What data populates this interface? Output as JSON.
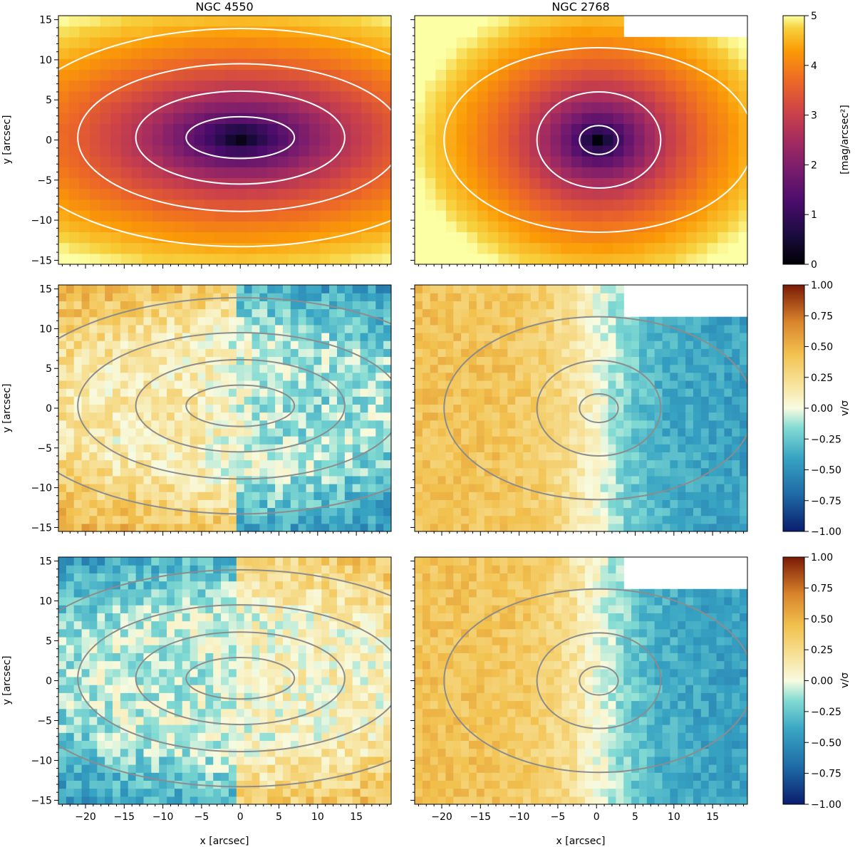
{
  "chart_data": {
    "type": "heatmap",
    "column_titles": [
      "NGC 4550",
      "NGC 2768"
    ],
    "x_axis": {
      "label": "x [arcsec]",
      "range": [
        -23.5,
        19.5
      ],
      "major_ticks": [
        -20,
        -15,
        -10,
        -5,
        0,
        5,
        10,
        15
      ],
      "tick_labels": [
        "−20",
        "−15",
        "−10",
        "−5",
        "0",
        "5",
        "10",
        "15"
      ]
    },
    "y_axis": {
      "label": "y [arcsec]",
      "range": [
        -15.5,
        15.5
      ],
      "major_ticks": [
        -15,
        -10,
        -5,
        0,
        5,
        10,
        15
      ],
      "tick_labels": [
        "−15",
        "−10",
        "−5",
        "0",
        "5",
        "10",
        "15"
      ]
    },
    "rows": [
      {
        "quantity": "surface brightness",
        "colormap": "inferno_r",
        "colorbar": {
          "label": "[mag/arcsec²]",
          "range": [
            0,
            5
          ],
          "ticks": [
            0,
            1,
            2,
            3,
            4,
            5
          ],
          "tick_labels": [
            "0",
            "1",
            "2",
            "3",
            "4",
            "5"
          ]
        },
        "contour_color": "#ffffff"
      },
      {
        "quantity": "v/sigma",
        "colormap": "YlOrBr / diverging",
        "colorbar": {
          "label": "v/σ",
          "range": [
            -1,
            1
          ],
          "ticks": [
            1,
            0.75,
            0.5,
            0.25,
            0,
            -0.25,
            -0.5,
            -0.75,
            -1
          ],
          "tick_labels": [
            "1.00",
            "0.75",
            "0.50",
            "0.25",
            "0.00",
            "−0.25",
            "−0.50",
            "−0.75",
            "−1.00"
          ]
        },
        "contour_color": "#8c8c8c"
      },
      {
        "quantity": "v/sigma",
        "colormap": "YlOrBr / diverging",
        "colorbar": {
          "label": "v/σ",
          "range": [
            -1,
            1
          ],
          "ticks": [
            1,
            0.75,
            0.5,
            0.25,
            0,
            -0.25,
            -0.5,
            -0.75,
            -1
          ],
          "tick_labels": [
            "1.00",
            "0.75",
            "0.50",
            "0.25",
            "0.00",
            "−0.25",
            "−0.50",
            "−0.75",
            "−1.00"
          ]
        },
        "contour_color": "#8c8c8c"
      }
    ],
    "galaxies": [
      {
        "name": "NGC 4550",
        "center": [
          0,
          0.3
        ],
        "isophote_axes": [
          [
            7,
            2.6
          ],
          [
            13.5,
            5.8
          ],
          [
            21,
            9.2
          ],
          [
            30,
            13.6
          ]
        ],
        "rotation_sign": 1,
        "counter_rotation": true,
        "missing_corner": "none"
      },
      {
        "name": "NGC 2768",
        "center": [
          0.3,
          0
        ],
        "isophote_axes": [
          [
            2.5,
            1.8
          ],
          [
            8,
            6
          ],
          [
            20,
            11.5
          ]
        ],
        "rotation_sign": 1,
        "counter_rotation": false,
        "missing_corner": "top-right"
      }
    ]
  }
}
